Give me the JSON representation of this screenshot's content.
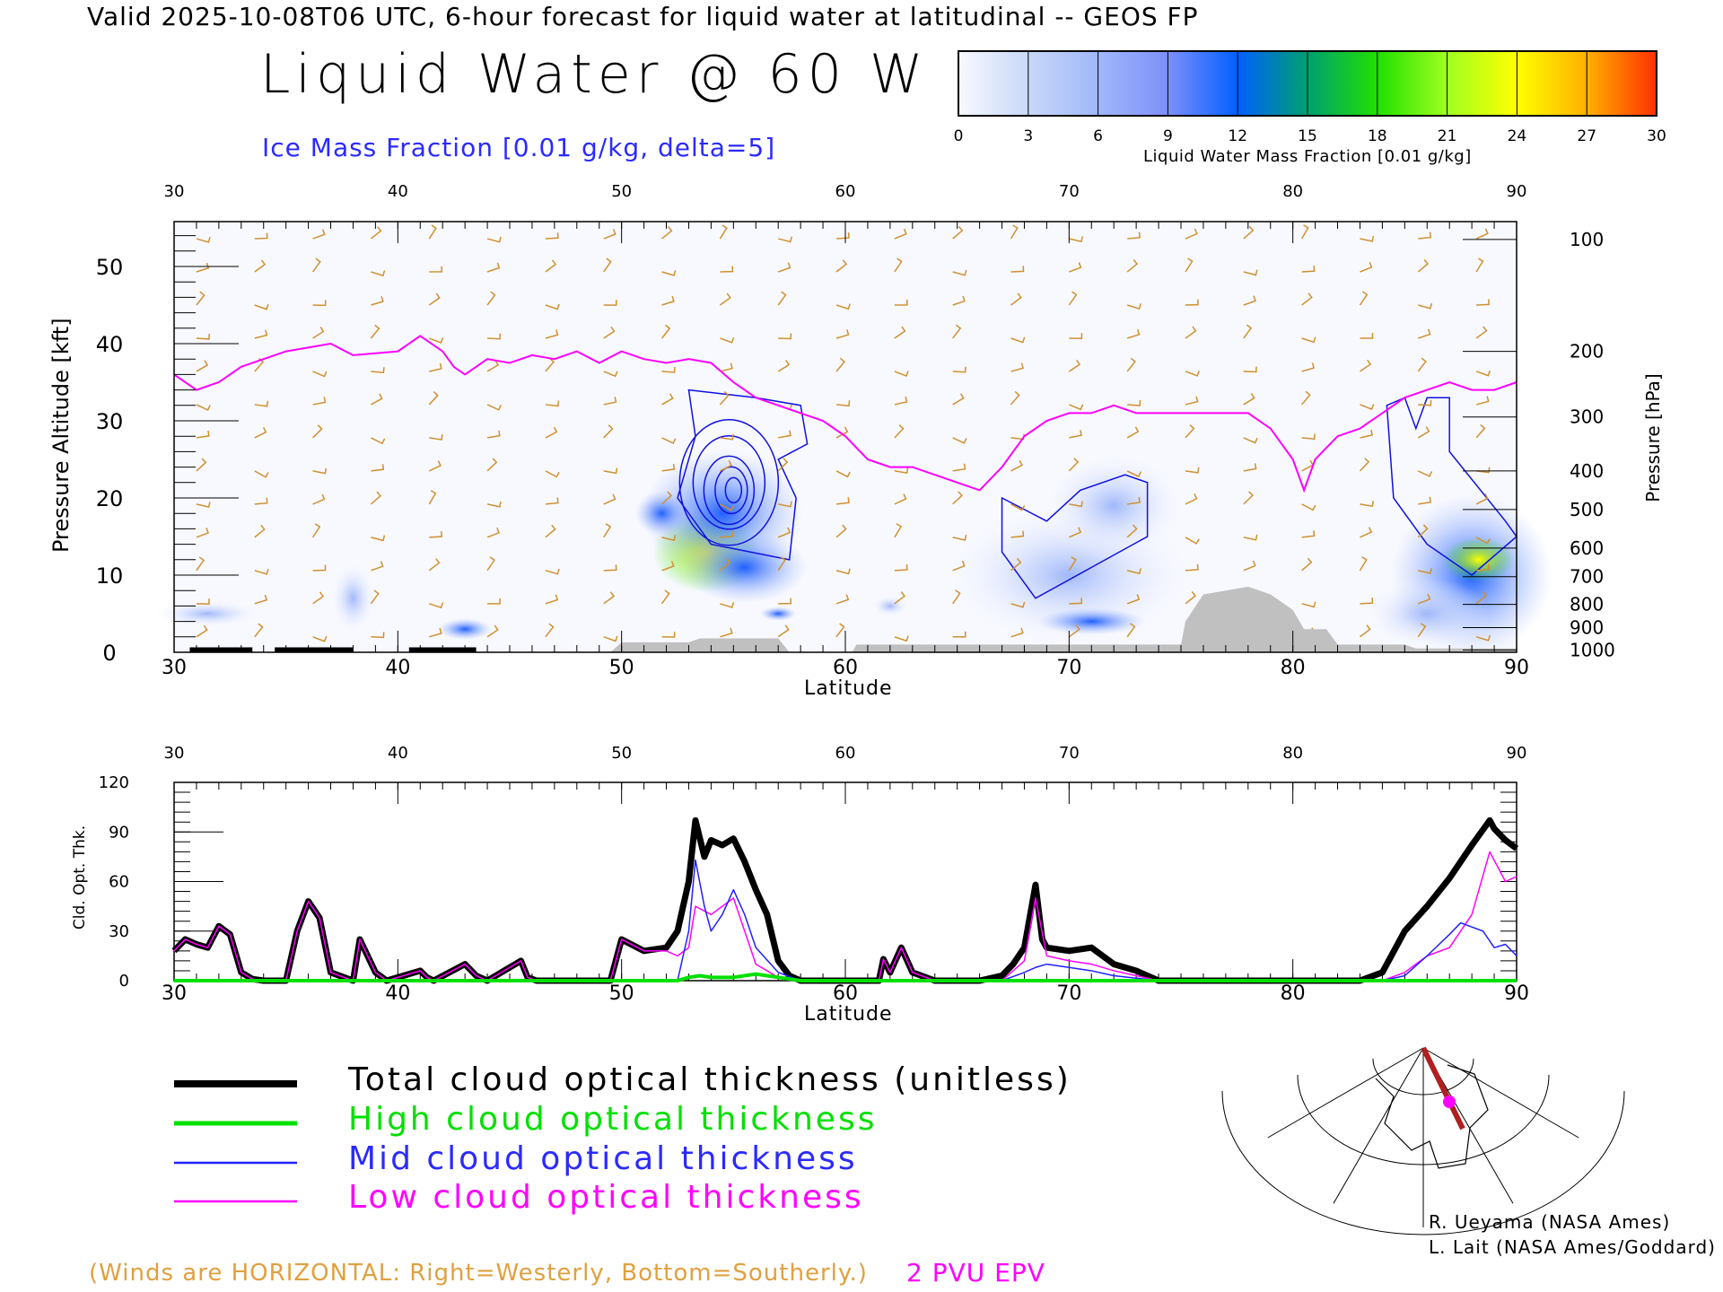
{
  "header": {
    "valid_line": "Valid 2025-10-08T06 UTC, 6-hour forecast for liquid water at latitudinal -- GEOS FP",
    "title": "Liquid Water @ 60 W",
    "ice_label": "Ice Mass Fraction [0.01 g/kg, delta=5]"
  },
  "colorbar": {
    "ticks": [
      "0",
      "3",
      "6",
      "9",
      "12",
      "15",
      "18",
      "21",
      "24",
      "27",
      "30"
    ],
    "caption": "Liquid Water Mass Fraction [0.01 g/kg]",
    "colors": [
      "#f8f9ff",
      "#c8d8f8",
      "#a0b8fa",
      "#7d8ffa",
      "#0060ff",
      "#00a070",
      "#20e000",
      "#a0ff20",
      "#ffff00",
      "#ffb000",
      "#ff3000"
    ]
  },
  "chart_data": [
    {
      "type": "heatmap",
      "title": "Liquid Water @ 60 W",
      "xlabel": "Latitude",
      "ylabel": "Pressure Altitude [kft]",
      "ylabel_right": "Pressure [hPa]",
      "xlim": [
        30,
        90
      ],
      "ylim": [
        0,
        55
      ],
      "x_ticks": [
        "30",
        "40",
        "50",
        "60",
        "70",
        "80",
        "90"
      ],
      "y_ticks": [
        "0",
        "10",
        "20",
        "30",
        "40",
        "50"
      ],
      "pressure_ticks": [
        "100",
        "200",
        "300",
        "400",
        "500",
        "600",
        "700",
        "800",
        "900",
        "1000"
      ],
      "pressure_tick_kft": [
        53.5,
        39,
        30.5,
        23.5,
        18.5,
        13.5,
        9.8,
        6.2,
        3.2,
        0.3
      ],
      "tropopause_label": "2 PVU EPV",
      "tropopause_kft": {
        "lat": [
          30,
          31,
          32,
          33,
          35,
          37,
          38,
          40,
          41,
          42,
          42.5,
          43,
          43.5,
          44,
          45,
          46,
          47,
          48,
          49,
          50,
          51,
          52,
          53,
          54,
          55,
          56,
          57,
          58,
          59,
          60,
          61,
          62,
          63,
          64,
          65,
          66,
          67,
          68,
          69,
          70,
          71,
          72,
          73,
          74,
          75,
          76,
          77,
          78,
          79,
          80,
          80.5,
          81,
          82,
          83,
          84,
          85,
          86,
          87,
          88,
          89,
          90
        ],
        "kft": [
          36,
          34,
          35,
          37,
          39,
          40,
          38.5,
          39,
          41,
          39,
          37,
          36,
          37,
          38,
          37.5,
          38.5,
          38,
          39,
          37.5,
          39,
          38,
          37.5,
          38,
          37.5,
          35,
          33,
          32,
          31,
          30,
          28,
          25,
          24,
          24,
          23,
          22,
          21,
          24,
          28,
          30,
          31,
          31,
          32,
          31,
          31,
          31,
          31,
          31,
          31,
          29,
          25,
          21,
          25,
          28,
          29,
          31,
          33,
          34,
          35,
          34,
          34,
          35
        ]
      },
      "terrain_kft": {
        "lat": [
          30,
          49.5,
          50,
          53,
          53.5,
          57,
          57.5,
          60.3,
          60.5,
          75,
          75.2,
          76,
          77,
          78,
          79,
          80,
          80.5,
          81.5,
          82,
          85,
          85.5,
          90
        ],
        "kft": [
          0,
          0,
          1.3,
          1.3,
          1.8,
          1.8,
          0,
          0,
          1,
          1,
          4,
          7.5,
          8,
          8.5,
          7.5,
          5.5,
          3,
          3,
          1,
          1,
          0.5,
          0.5
        ]
      }
    },
    {
      "type": "line",
      "xlabel": "Latitude",
      "ylabel": "Cld. Opt. Thk.",
      "xlim": [
        30,
        90
      ],
      "ylim": [
        0,
        120
      ],
      "x_ticks": [
        "30",
        "40",
        "50",
        "60",
        "70",
        "80",
        "90"
      ],
      "y_ticks": [
        "0",
        "30",
        "60",
        "90",
        "120"
      ],
      "series": [
        {
          "name": "Total cloud optical thickness (unitless)",
          "color": "#000000",
          "x": [
            30,
            30.5,
            31,
            31.5,
            32,
            32.5,
            33,
            33.5,
            34,
            35,
            35.5,
            36,
            36.5,
            37,
            38,
            38.3,
            39,
            39.5,
            41,
            41.3,
            41.6,
            43,
            43.5,
            44,
            45.5,
            45.8,
            46.2,
            49.5,
            50,
            51,
            52,
            52.5,
            53,
            53.3,
            53.7,
            54,
            54.5,
            55,
            55.5,
            56,
            56.5,
            57,
            57.5,
            58,
            61.5,
            61.7,
            62,
            62.5,
            63,
            64,
            66,
            67,
            67.5,
            68,
            68.5,
            68.8,
            69,
            70,
            71,
            72,
            73,
            74,
            83,
            84,
            85,
            86,
            87,
            88,
            88.8,
            89,
            89.5,
            90
          ],
          "values": [
            18,
            25,
            22,
            20,
            33,
            28,
            5,
            1,
            0,
            0,
            30,
            48,
            38,
            5,
            0,
            25,
            5,
            0,
            6,
            2,
            0,
            10,
            3,
            0,
            12,
            2,
            0,
            0,
            25,
            18,
            20,
            30,
            60,
            97,
            75,
            85,
            82,
            86,
            72,
            55,
            40,
            12,
            3,
            0,
            0,
            13,
            5,
            20,
            5,
            0,
            0,
            3,
            10,
            20,
            58,
            25,
            20,
            18,
            20,
            10,
            6,
            0,
            0,
            5,
            30,
            45,
            62,
            82,
            97,
            92,
            85,
            80
          ]
        },
        {
          "name": "High cloud optical thickness",
          "color": "#00e000",
          "x": [
            30,
            52.5,
            53,
            53.5,
            54,
            55,
            56,
            57,
            58,
            90
          ],
          "values": [
            0,
            0,
            2,
            3,
            2,
            2,
            4,
            2,
            0,
            0
          ]
        },
        {
          "name": "Mid cloud optical thickness",
          "color": "#2020ff",
          "x": [
            30,
            52.5,
            53,
            53.3,
            53.7,
            54,
            54.5,
            55,
            55.5,
            56,
            57,
            58,
            67,
            68,
            68.5,
            69,
            70,
            71,
            72,
            74,
            84,
            85,
            86,
            87,
            87.5,
            88.5,
            89,
            89.5,
            90
          ],
          "values": [
            0,
            0,
            30,
            73,
            45,
            30,
            40,
            55,
            40,
            20,
            5,
            0,
            0,
            5,
            8,
            10,
            8,
            6,
            3,
            0,
            0,
            3,
            15,
            28,
            35,
            30,
            20,
            22,
            15
          ]
        },
        {
          "name": "Low cloud optical thickness",
          "color": "#ff00ff",
          "x": [
            30,
            30.5,
            31,
            31.5,
            32,
            32.5,
            33,
            33.5,
            34,
            35,
            35.5,
            36,
            36.5,
            37,
            38,
            38.3,
            39,
            39.5,
            41,
            41.3,
            41.6,
            43,
            43.5,
            44,
            45.5,
            45.8,
            46.2,
            49.5,
            50,
            51,
            52,
            52.5,
            53,
            53.3,
            54,
            55,
            55.5,
            56,
            57,
            58,
            61.5,
            61.7,
            62,
            62.5,
            63,
            64,
            67,
            68,
            68.5,
            69,
            70,
            71,
            72,
            74,
            84,
            85,
            86,
            87,
            88,
            88.8,
            89.5,
            90
          ],
          "values": [
            18,
            25,
            22,
            20,
            33,
            28,
            5,
            1,
            0,
            0,
            30,
            48,
            38,
            5,
            0,
            25,
            5,
            0,
            6,
            2,
            0,
            10,
            3,
            0,
            12,
            2,
            0,
            0,
            25,
            18,
            18,
            15,
            20,
            45,
            40,
            50,
            30,
            10,
            2,
            0,
            0,
            13,
            5,
            20,
            5,
            0,
            0,
            12,
            50,
            15,
            12,
            10,
            6,
            0,
            0,
            5,
            15,
            20,
            40,
            78,
            60,
            63
          ]
        }
      ]
    }
  ],
  "legend": [
    {
      "label": "Total cloud optical thickness (unitless)",
      "color": "#000000"
    },
    {
      "label": "High cloud optical thickness",
      "color": "#00e000"
    },
    {
      "label": "Mid cloud optical thickness",
      "color": "#2020ff"
    },
    {
      "label": "Low cloud optical thickness",
      "color": "#ff00ff"
    }
  ],
  "credits": [
    "R. Ueyama (NASA Ames)",
    "L. Lait (NASA Ames/Goddard)"
  ],
  "footer": {
    "winds_note": "(Winds are HORIZONTAL: Right=Westerly, Bottom=Southerly.)",
    "epv_label": "2 PVU EPV"
  }
}
